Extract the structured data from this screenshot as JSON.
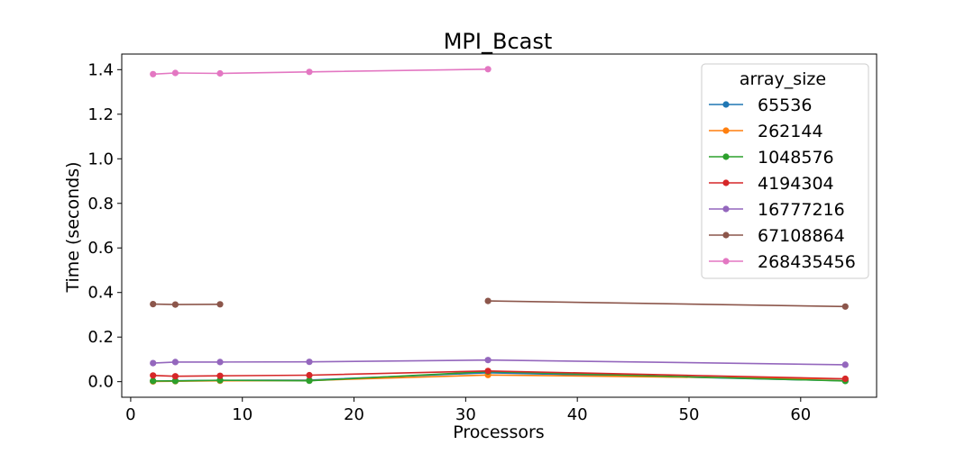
{
  "chart_data": {
    "type": "line",
    "title": "MPI_Bcast",
    "xlabel": "Processors",
    "ylabel": "Time (seconds)",
    "xlim": [
      -0.8,
      66.8
    ],
    "ylim": [
      -0.07,
      1.47
    ],
    "xticks": [
      0,
      10,
      20,
      30,
      40,
      50,
      60
    ],
    "yticks": [
      0.0,
      0.2,
      0.4,
      0.6,
      0.8,
      1.0,
      1.2,
      1.4
    ],
    "ytick_labels": [
      "0.0",
      "0.2",
      "0.4",
      "0.6",
      "0.8",
      "1.0",
      "1.2",
      "1.4"
    ],
    "grid": false,
    "legend_title": "array_size",
    "legend_position": "top-right",
    "series": [
      {
        "name": "65536",
        "color": "#1f77b4",
        "segments": [
          [
            [
              2,
              0.002
            ],
            [
              4,
              0.004
            ],
            [
              8,
              0.006
            ],
            [
              16,
              0.007
            ],
            [
              32,
              0.04
            ],
            [
              64,
              0.004
            ]
          ]
        ]
      },
      {
        "name": "262144",
        "color": "#ff7f0e",
        "segments": [
          [
            [
              2,
              0.001
            ],
            [
              4,
              0.002
            ],
            [
              8,
              0.004
            ],
            [
              16,
              0.005
            ],
            [
              32,
              0.03
            ],
            [
              64,
              0.012
            ]
          ]
        ]
      },
      {
        "name": "1048576",
        "color": "#2ca02c",
        "segments": [
          [
            [
              2,
              0.003
            ],
            [
              4,
              0.003
            ],
            [
              8,
              0.006
            ],
            [
              16,
              0.004
            ],
            [
              32,
              0.045
            ],
            [
              64,
              0.003
            ]
          ]
        ]
      },
      {
        "name": "4194304",
        "color": "#d62728",
        "segments": [
          [
            [
              2,
              0.028
            ],
            [
              4,
              0.024
            ],
            [
              8,
              0.026
            ],
            [
              16,
              0.029
            ],
            [
              32,
              0.048
            ],
            [
              64,
              0.013
            ]
          ]
        ]
      },
      {
        "name": "16777216",
        "color": "#9467bd",
        "segments": [
          [
            [
              2,
              0.083
            ],
            [
              4,
              0.088
            ],
            [
              8,
              0.088
            ],
            [
              16,
              0.089
            ],
            [
              32,
              0.097
            ],
            [
              64,
              0.076
            ]
          ]
        ]
      },
      {
        "name": "67108864",
        "color": "#8c564b",
        "segments": [
          [
            [
              2,
              0.348
            ],
            [
              4,
              0.346
            ],
            [
              8,
              0.347
            ]
          ],
          [
            [
              32,
              0.362
            ],
            [
              64,
              0.337
            ]
          ]
        ]
      },
      {
        "name": "268435456",
        "color": "#e377c2",
        "segments": [
          [
            [
              2,
              1.38
            ],
            [
              4,
              1.385
            ],
            [
              8,
              1.383
            ],
            [
              16,
              1.39
            ],
            [
              32,
              1.402
            ]
          ]
        ]
      }
    ]
  }
}
